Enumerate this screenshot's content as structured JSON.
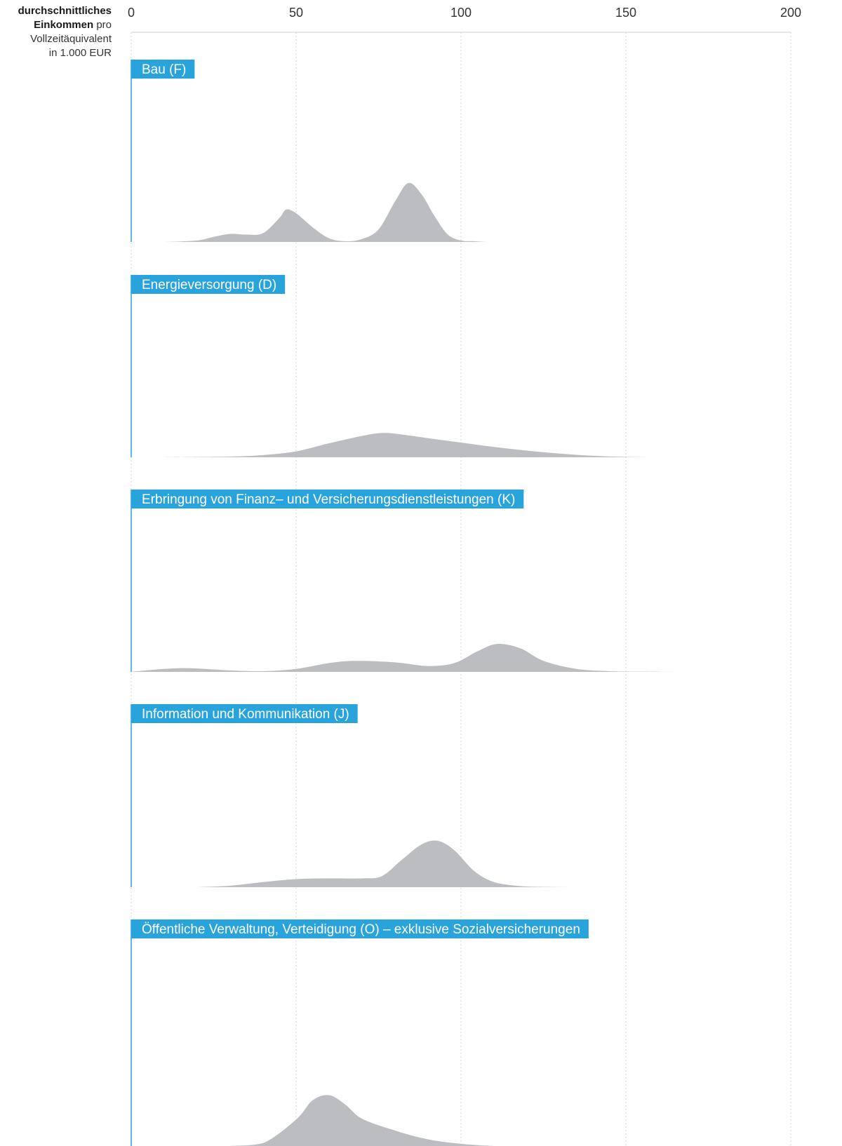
{
  "axis_caption": {
    "bold_word_1": "durchschnittliches",
    "bold_word_2": "Einkommen",
    "rest_line_2": "pro",
    "line_3": "Vollzeitäquivalent",
    "line_4": "in 1.000 EUR"
  },
  "colors": {
    "accent": "#29a3dc",
    "density_fill": "#bbbdc0",
    "grid": "#d6d6d6",
    "axis_line": "#cccccc",
    "text": "#333333"
  },
  "chart_data": {
    "type": "area",
    "subtype": "ridgeline-density",
    "x_axis": {
      "label": "durchschnittliches Einkommen pro Vollzeitäquivalent in 1.000 EUR",
      "ticks": [
        0,
        50,
        100,
        150,
        200
      ],
      "range": [
        0,
        200
      ],
      "position": "top",
      "grid": true
    },
    "y_scale_max": 1.0,
    "panels": [
      {
        "title": "Bau (F)",
        "x": [
          10,
          20,
          25,
          30,
          35,
          40,
          45,
          47,
          50,
          55,
          60,
          65,
          70,
          75,
          80,
          84,
          88,
          92,
          96,
          100,
          104,
          108
        ],
        "y": [
          0,
          0.02,
          0.07,
          0.11,
          0.1,
          0.12,
          0.33,
          0.44,
          0.39,
          0.2,
          0.05,
          0.01,
          0.04,
          0.17,
          0.55,
          0.8,
          0.65,
          0.35,
          0.1,
          0.02,
          0.01,
          0
        ]
      },
      {
        "title": "Energieversorgung (D)",
        "x": [
          10,
          30,
          40,
          50,
          60,
          70,
          76,
          82,
          90,
          100,
          110,
          120,
          130,
          140,
          150,
          158
        ],
        "y": [
          0,
          0.01,
          0.03,
          0.08,
          0.19,
          0.29,
          0.33,
          0.31,
          0.26,
          0.2,
          0.14,
          0.09,
          0.05,
          0.02,
          0.005,
          0
        ]
      },
      {
        "title": "Erbringung von Finanz– und Versicherungsdienstleistungen (K)",
        "x": [
          0,
          10,
          18,
          30,
          40,
          50,
          60,
          68,
          80,
          90,
          98,
          105,
          111,
          118,
          125,
          135,
          145,
          155,
          165
        ],
        "y": [
          0,
          0.04,
          0.05,
          0.02,
          0.01,
          0.04,
          0.12,
          0.15,
          0.13,
          0.08,
          0.12,
          0.28,
          0.38,
          0.32,
          0.15,
          0.04,
          0.01,
          0.003,
          0
        ]
      },
      {
        "title": "Information und Kommunikation (J)",
        "x": [
          20,
          30,
          40,
          50,
          60,
          70,
          76,
          82,
          88,
          93,
          98,
          104,
          110,
          118,
          126,
          132
        ],
        "y": [
          0,
          0.02,
          0.07,
          0.11,
          0.12,
          0.12,
          0.15,
          0.37,
          0.58,
          0.63,
          0.5,
          0.22,
          0.07,
          0.015,
          0.003,
          0
        ]
      },
      {
        "title": "Öffentliche Verwaltung, Verteidigung (O) – exklusive Sozialversicherungen",
        "x": [
          30,
          40,
          50,
          55,
          60,
          65,
          70,
          80,
          90,
          100,
          110
        ],
        "y": [
          0,
          0.04,
          0.36,
          0.62,
          0.69,
          0.56,
          0.37,
          0.21,
          0.09,
          0.03,
          0
        ]
      }
    ]
  }
}
